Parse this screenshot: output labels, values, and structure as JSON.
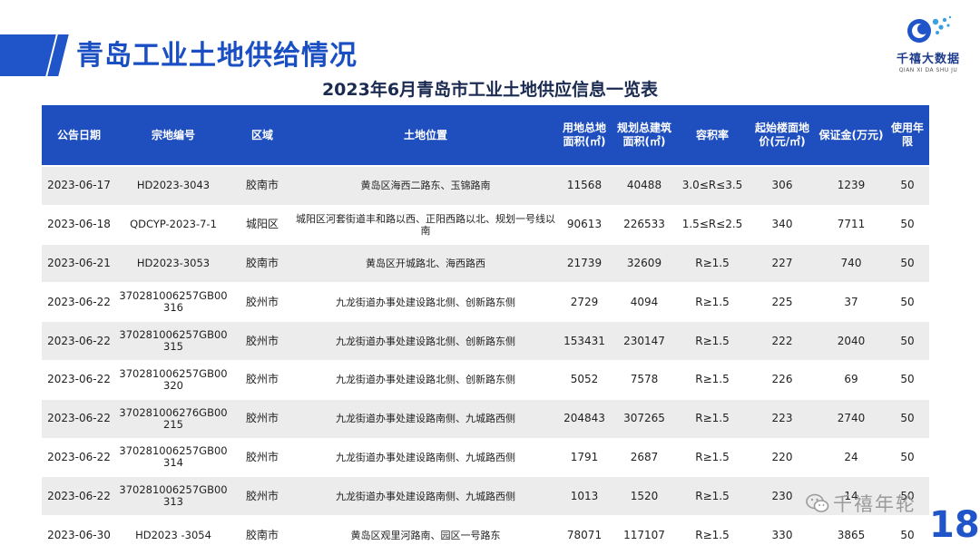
{
  "header": {
    "title": "青岛工业土地供给情况",
    "logo_name": "千禧大数据",
    "logo_sub": "QIAN XI DA SHU JU"
  },
  "table": {
    "title": "2023年6月青岛市工业土地供应信息一览表",
    "columns": [
      "公告日期",
      "宗地编号",
      "区域",
      "土地位置",
      "用地总地\n面积(㎡)",
      "规划总建筑\n面积(㎡)",
      "容积率",
      "起始楼面地\n价(元/㎡)",
      "保证金(万元)",
      "使用年限"
    ],
    "rows": [
      [
        "2023-06-17",
        "HD2023-3043",
        "胶南市",
        "黄岛区海西二路东、玉锦路南",
        "11568",
        "40488",
        "3.0≤R≤3.5",
        "306",
        "1239",
        "50"
      ],
      [
        "2023-06-18",
        "QDCYP-2023-7-1",
        "城阳区",
        "城阳区河套街道丰和路以西、正阳西路以北、规划一号线以南",
        "90613",
        "226533",
        "1.5≤R≤2.5",
        "340",
        "7711",
        "50"
      ],
      [
        "2023-06-21",
        "HD2023-3053",
        "胶南市",
        "黄岛区开城路北、海西路西",
        "21739",
        "32609",
        "R≥1.5",
        "227",
        "740",
        "50"
      ],
      [
        "2023-06-22",
        "370281006257GB00316",
        "胶州市",
        "九龙街道办事处建设路北侧、创新路东侧",
        "2729",
        "4094",
        "R≥1.5",
        "225",
        "37",
        "50"
      ],
      [
        "2023-06-22",
        "370281006257GB00315",
        "胶州市",
        "九龙街道办事处建设路北侧、创新路东侧",
        "153431",
        "230147",
        "R≥1.5",
        "222",
        "2040",
        "50"
      ],
      [
        "2023-06-22",
        "370281006257GB00320",
        "胶州市",
        "九龙街道办事处建设路北侧、创新路东侧",
        "5052",
        "7578",
        "R≥1.5",
        "226",
        "69",
        "50"
      ],
      [
        "2023-06-22",
        "370281006276GB00215",
        "胶州市",
        "九龙街道办事处建设路南侧、九城路西侧",
        "204843",
        "307265",
        "R≥1.5",
        "223",
        "2740",
        "50"
      ],
      [
        "2023-06-22",
        "370281006257GB00314",
        "胶州市",
        "九龙街道办事处建设路南侧、九城路西侧",
        "1791",
        "2687",
        "R≥1.5",
        "220",
        "24",
        "50"
      ],
      [
        "2023-06-22",
        "370281006257GB00313",
        "胶州市",
        "九龙街道办事处建设路南侧、九城路西侧",
        "1013",
        "1520",
        "R≥1.5",
        "230",
        "14",
        "50"
      ],
      [
        "2023-06-30",
        "HD2023 -3054",
        "胶南市",
        "黄岛区观里河路南、园区一号路东",
        "78071",
        "117107",
        "R≥1.5",
        "330",
        "3865",
        "50"
      ]
    ]
  },
  "watermark": "千禧年轮",
  "page_number": "18",
  "colors": {
    "brand_blue": "#1f55c8",
    "header_blue": "#1f4fbf",
    "stripe_gray": "#ececec"
  }
}
